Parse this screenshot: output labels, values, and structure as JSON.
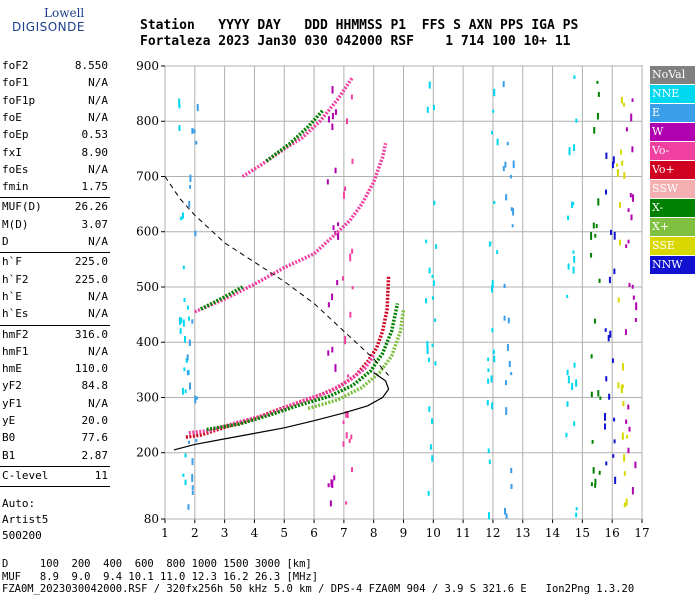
{
  "logo": {
    "line1": "Lowell",
    "line2": "DIGISONDE"
  },
  "header": {
    "line1": "Station   YYYY DAY   DDD HHMMSS P1  FFS S AXN PPS IGA PS",
    "line2": "Fortaleza 2023 Jan30 030 042000 RSF    1 714 100 10+ 11"
  },
  "params": {
    "groups": [
      [
        {
          "label": "foF2",
          "value": "8.550"
        },
        {
          "label": "foF1",
          "value": "N/A"
        },
        {
          "label": "foF1p",
          "value": "N/A"
        },
        {
          "label": "foE",
          "value": "N/A"
        },
        {
          "label": "foEp",
          "value": "0.53"
        },
        {
          "label": "fxI",
          "value": "8.90"
        },
        {
          "label": "foEs",
          "value": "N/A"
        },
        {
          "label": "fmin",
          "value": "1.75"
        }
      ],
      [
        {
          "label": "MUF(D)",
          "value": "26.26"
        },
        {
          "label": "M(D)",
          "value": "3.07"
        },
        {
          "label": "D",
          "value": "N/A"
        }
      ],
      [
        {
          "label": "h`F",
          "value": "225.0"
        },
        {
          "label": "h`F2",
          "value": "225.0"
        },
        {
          "label": "h`E",
          "value": "N/A"
        },
        {
          "label": "h`Es",
          "value": "N/A"
        }
      ],
      [
        {
          "label": "hmF2",
          "value": "316.0"
        },
        {
          "label": "hmF1",
          "value": "N/A"
        },
        {
          "label": "hmE",
          "value": "110.0"
        },
        {
          "label": "yF2",
          "value": "84.8"
        },
        {
          "label": "yF1",
          "value": "N/A"
        },
        {
          "label": "yE",
          "value": "20.0"
        },
        {
          "label": "B0",
          "value": "77.6"
        },
        {
          "label": "B1",
          "value": "2.87"
        }
      ],
      [
        {
          "label": "C-level",
          "value": "11"
        }
      ]
    ],
    "auto": [
      "Auto:",
      "Artist5",
      "500200"
    ]
  },
  "legend": [
    {
      "label": "NoVal",
      "color": "#808080"
    },
    {
      "label": "NNE",
      "color": "#00d8f0"
    },
    {
      "label": "E",
      "color": "#3a9ee8"
    },
    {
      "label": "W",
      "color": "#b000b0"
    },
    {
      "label": "Vo-",
      "color": "#f040a0"
    },
    {
      "label": "Vo+",
      "color": "#d00020"
    },
    {
      "label": "SSW",
      "color": "#f4b0b0"
    },
    {
      "label": "X-",
      "color": "#008000"
    },
    {
      "label": "X+",
      "color": "#80c040"
    },
    {
      "label": "SSE",
      "color": "#d8d800"
    },
    {
      "label": "NNW",
      "color": "#1010d0"
    }
  ],
  "footer": {
    "line1": "D     100  200  400  600  800 1000 1500 3000 [km]",
    "line2": "MUF   8.9  9.0  9.4 10.1 11.0 12.3 16.2 26.3 [MHz]",
    "line3": "FZA0M_2023030042000.RSF / 320fx256h 50 kHz 5.0 km / DPS-4 FZA0M 904 / 3.9 S 321.6 E   Ion2Png 1.3.20"
  },
  "chart_data": {
    "type": "scatter",
    "xlim": [
      1,
      17
    ],
    "ylim": [
      80,
      900
    ],
    "x_ticks": [
      "1",
      "2",
      "3",
      "4",
      "5",
      "6",
      "7",
      "8",
      "9",
      "10",
      "11",
      "12",
      "13",
      "14",
      "15",
      "16",
      "17"
    ],
    "y_ticks": [
      "80",
      "200",
      "300",
      "400",
      "500",
      "600",
      "700",
      "800",
      "900"
    ],
    "grid": true,
    "traces": [
      {
        "name": "Vo+",
        "color": "#d00020",
        "points": [
          [
            1.7,
            228
          ],
          [
            2.2,
            232
          ],
          [
            3,
            246
          ],
          [
            4,
            262
          ],
          [
            5,
            282
          ],
          [
            6,
            300
          ],
          [
            6.8,
            318
          ],
          [
            7.4,
            340
          ],
          [
            7.8,
            365
          ],
          [
            8.1,
            390
          ],
          [
            8.3,
            420
          ],
          [
            8.45,
            460
          ],
          [
            8.5,
            520
          ]
        ]
      },
      {
        "name": "Vo-",
        "color": "#f040a0",
        "points": [
          [
            1.8,
            236
          ],
          [
            2.5,
            240
          ],
          [
            3.5,
            256
          ],
          [
            4.5,
            270
          ],
          [
            5.5,
            292
          ],
          [
            6.5,
            310
          ],
          [
            7.2,
            332
          ],
          [
            7.7,
            352
          ],
          [
            8.0,
            376
          ]
        ]
      },
      {
        "name": "X-",
        "color": "#008000",
        "points": [
          [
            2.4,
            242
          ],
          [
            3.5,
            252
          ],
          [
            4.5,
            268
          ],
          [
            5.5,
            286
          ],
          [
            6.5,
            302
          ],
          [
            7.3,
            322
          ],
          [
            7.9,
            348
          ],
          [
            8.3,
            380
          ],
          [
            8.6,
            420
          ],
          [
            8.8,
            470
          ]
        ]
      },
      {
        "name": "X+",
        "color": "#80c040",
        "points": [
          [
            5.8,
            280
          ],
          [
            6.8,
            296
          ],
          [
            7.6,
            318
          ],
          [
            8.2,
            345
          ],
          [
            8.6,
            375
          ],
          [
            8.9,
            420
          ],
          [
            9.0,
            460
          ]
        ]
      },
      {
        "name": "Vo- 2nd",
        "color": "#f040a0",
        "points": [
          [
            2.0,
            455
          ],
          [
            3,
            478
          ],
          [
            4,
            505
          ],
          [
            5,
            535
          ],
          [
            6,
            560
          ],
          [
            6.6,
            590
          ],
          [
            7.2,
            620
          ],
          [
            7.6,
            650
          ],
          [
            8.0,
            690
          ],
          [
            8.3,
            735
          ],
          [
            8.4,
            760
          ]
        ]
      },
      {
        "name": "X- 2nd",
        "color": "#008000",
        "points": [
          [
            2.2,
            460
          ],
          [
            3.0,
            482
          ],
          [
            3.6,
            500
          ]
        ]
      },
      {
        "name": "Vo- 3rd",
        "color": "#f040a0",
        "points": [
          [
            3.6,
            700
          ],
          [
            4.2,
            720
          ],
          [
            5,
            750
          ],
          [
            5.6,
            770
          ],
          [
            6.2,
            800
          ],
          [
            6.8,
            840
          ],
          [
            7.3,
            880
          ]
        ]
      },
      {
        "name": "X- 3rd",
        "color": "#008000",
        "points": [
          [
            4.4,
            728
          ],
          [
            5.2,
            760
          ],
          [
            5.8,
            790
          ],
          [
            6.3,
            820
          ]
        ]
      }
    ],
    "profile_solid": [
      [
        1.3,
        205
      ],
      [
        2,
        215
      ],
      [
        3,
        225
      ],
      [
        4,
        235
      ],
      [
        5,
        245
      ],
      [
        6,
        258
      ],
      [
        7,
        272
      ],
      [
        7.8,
        285
      ],
      [
        8.3,
        300
      ],
      [
        8.5,
        315
      ],
      [
        8.4,
        330
      ],
      [
        8.0,
        345
      ]
    ],
    "profile_dashed": [
      [
        1,
        700
      ],
      [
        1.5,
        660
      ],
      [
        2,
        630
      ],
      [
        3,
        580
      ],
      [
        4,
        545
      ],
      [
        5,
        510
      ],
      [
        6,
        470
      ],
      [
        7,
        420
      ],
      [
        7.5,
        395
      ],
      [
        8,
        370
      ],
      [
        8.5,
        340
      ]
    ]
  }
}
